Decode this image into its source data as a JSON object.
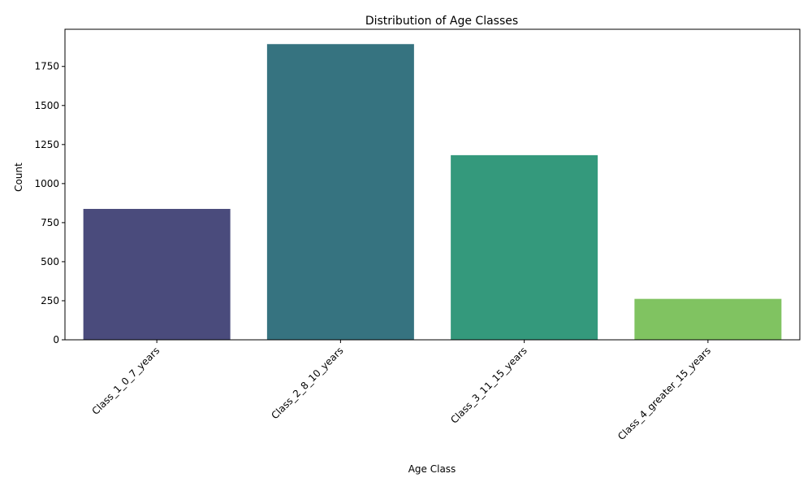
{
  "chart_data": {
    "type": "bar",
    "title": "Distribution of Age Classes",
    "xlabel": "Age Class",
    "ylabel": "Count",
    "categories": [
      "Class_1_0_7_years",
      "Class_2_8_10_years",
      "Class_3_11_15_years",
      "Class_4_greater_15_years"
    ],
    "values": [
      838,
      1893,
      1182,
      262
    ],
    "colors": [
      "#4a4b7c",
      "#367380",
      "#34997c",
      "#80c361"
    ],
    "ylim": [
      0,
      1988
    ],
    "yticks": [
      0,
      250,
      500,
      750,
      1000,
      1250,
      1500,
      1750
    ],
    "grid": false,
    "legend": "none",
    "xtick_rotation": 45
  }
}
